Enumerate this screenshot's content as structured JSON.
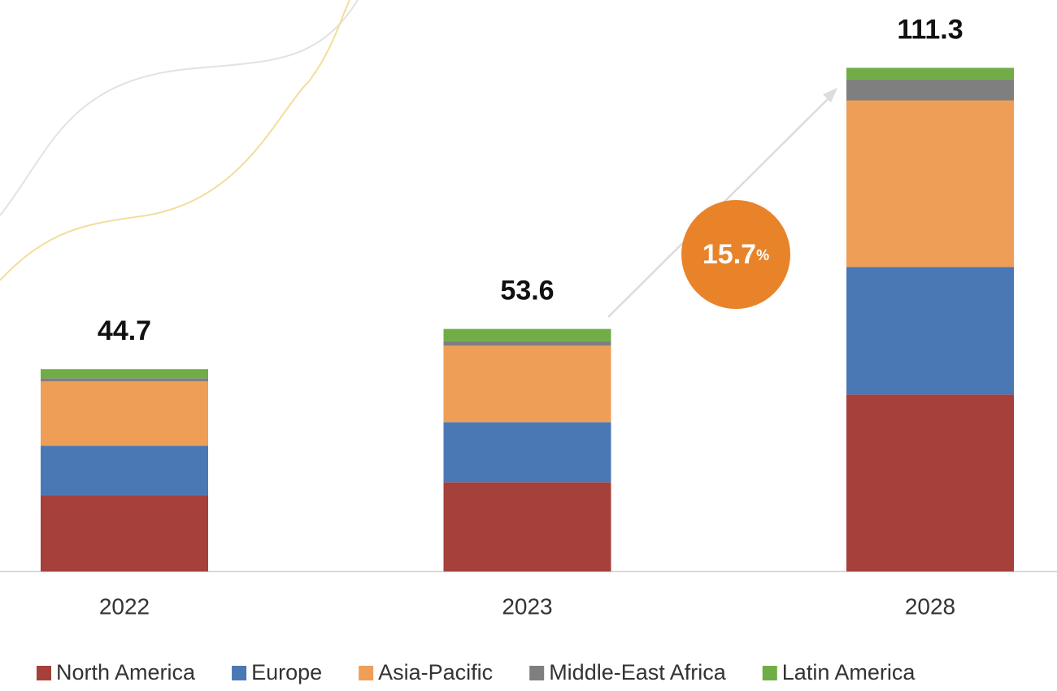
{
  "chart_data": {
    "type": "stacked-bar",
    "categories": [
      "2022",
      "2023",
      "2028"
    ],
    "series": [
      {
        "name": "North America",
        "color": "#a5403a",
        "values": [
          16.8,
          19.7,
          39.1
        ]
      },
      {
        "name": "Europe",
        "color": "#4a78b5",
        "values": [
          11.0,
          13.3,
          28.2
        ]
      },
      {
        "name": "Asia-Pacific",
        "color": "#ee9e56",
        "values": [
          14.2,
          16.9,
          36.8
        ]
      },
      {
        "name": "Middle-East Africa",
        "color": "#7f7f7f",
        "values": [
          0.7,
          1.0,
          4.7
        ]
      },
      {
        "name": "Latin America",
        "color": "#70ad47",
        "values": [
          2.0,
          2.7,
          2.5
        ]
      }
    ],
    "totals": [
      44.7,
      53.6,
      111.3
    ],
    "annotation": {
      "value": "15.7",
      "unit": "%"
    },
    "ylim": [
      0,
      120
    ]
  }
}
